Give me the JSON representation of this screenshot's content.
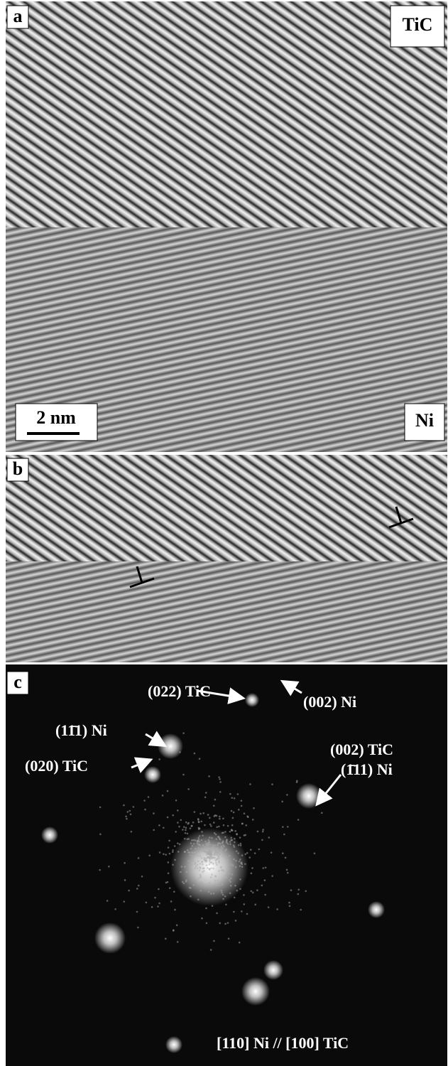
{
  "panels": [
    {
      "label": "a",
      "annotations": [
        "TiC",
        "Ni"
      ],
      "scale_bar": "2 nm"
    },
    {
      "label": "b"
    },
    {
      "label": "c",
      "spots": [
        "(022) TiC",
        "(002) Ni",
        "(11̄1) Ni",
        "(020) TiC",
        "(002) TiC",
        "(1̄11) Ni"
      ],
      "zone_axis": "[110] Ni // [100] TiC"
    }
  ]
}
